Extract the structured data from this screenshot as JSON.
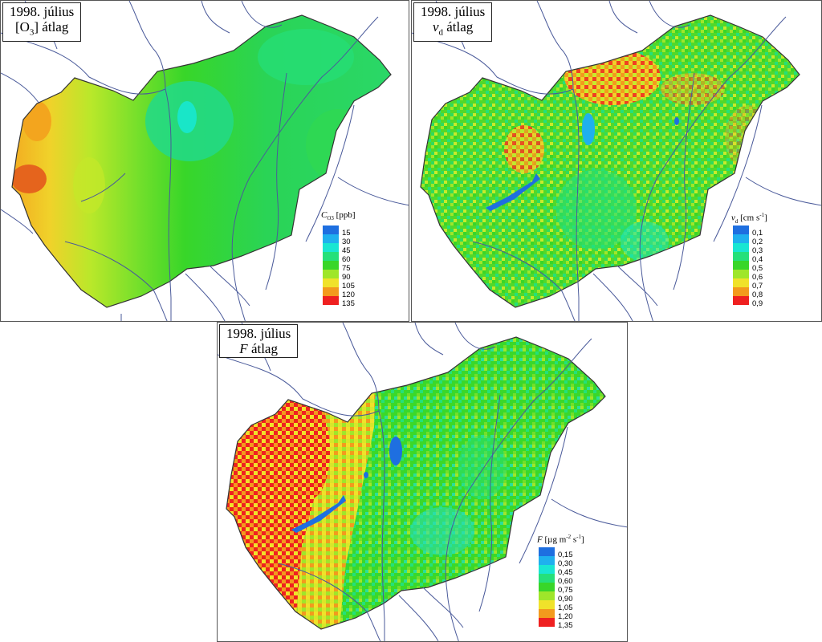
{
  "panels": [
    {
      "id": "p1",
      "title_line1": "1998. július",
      "title_line2_prefix": "[O",
      "title_line2_sub": "3",
      "title_line2_suffix": "] átlag",
      "legend": {
        "var": "C",
        "var_sub": "O3",
        "unit": " [ppb]",
        "labels": [
          "15",
          "30",
          "45",
          "60",
          "75",
          "90",
          "105",
          "120",
          "135"
        ]
      }
    },
    {
      "id": "p2",
      "title_line1": "1998. július",
      "title_line2_prefix": "v",
      "title_line2_sub": "d",
      "title_line2_suffix": " átlag",
      "legend": {
        "var": "v",
        "var_sub": "d",
        "unit": " [cm s",
        "unit_sup": "-1",
        "unit_end": "]",
        "labels": [
          "0,1",
          "0,2",
          "0,3",
          "0,4",
          "0,5",
          "0,6",
          "0,7",
          "0,8",
          "0,9"
        ]
      }
    },
    {
      "id": "p3",
      "title_line1": "1998. július",
      "title_line2_prefix": "F",
      "title_line2_sub": "",
      "title_line2_suffix": " átlag",
      "legend": {
        "var": "F",
        "var_sub": "",
        "unit": " [µg m",
        "unit_sup": "-2",
        "unit_mid": " s",
        "unit_sup2": "-1",
        "unit_end": "]",
        "labels": [
          "0,15",
          "0,30",
          "0,45",
          "0,60",
          "0,75",
          "0,90",
          "1,05",
          "1,20",
          "1,35"
        ]
      }
    }
  ],
  "colors": [
    "#1e6fe0",
    "#1fb0ee",
    "#19e6d2",
    "#25e07a",
    "#38d629",
    "#9fe62a",
    "#f0e22a",
    "#f39a1d",
    "#ef2020"
  ],
  "river_color": "#4a5a9a"
}
